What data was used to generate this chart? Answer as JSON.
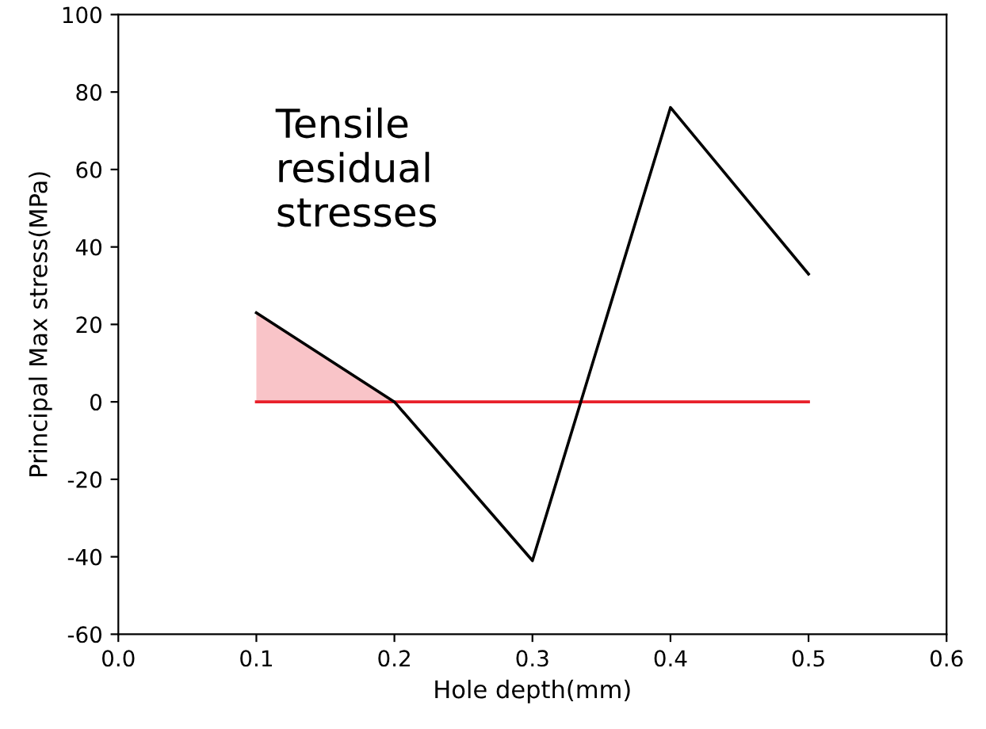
{
  "chart_data": {
    "type": "line",
    "xlabel": "Hole depth(mm)",
    "ylabel": "Principal Max stress(MPa)",
    "series": [
      {
        "type": "area",
        "x": [
          0.1,
          0.2
        ],
        "values": [
          23,
          0
        ],
        "color": "#f9c4c8"
      },
      {
        "type": "line",
        "x": [
          0.1,
          0.5
        ],
        "values": [
          0,
          0
        ],
        "color": "#e8202a"
      },
      {
        "x": [
          0.1,
          0.2,
          0.3,
          0.4,
          0.5
        ],
        "values": [
          23,
          0,
          -41,
          76,
          33
        ],
        "color": "#000000"
      }
    ],
    "annotations": [
      "Tensile\nresidual\nstresses"
    ],
    "xlim": [
      0,
      0.6
    ],
    "xticks": [
      {
        "value": 0,
        "label": "0.0"
      },
      {
        "value": 0.1,
        "label": "0.1"
      },
      {
        "value": 0.2,
        "label": "0.2"
      },
      {
        "value": 0.3,
        "label": "0.3"
      },
      {
        "value": 0.4,
        "label": "0.4"
      },
      {
        "value": 0.5,
        "label": "0.5"
      },
      {
        "value": 0.6,
        "label": "0.6"
      }
    ],
    "ylim": [
      -60,
      100
    ],
    "yticks": [
      -60,
      -40,
      -20,
      0,
      20,
      40,
      60,
      80,
      100
    ],
    "grid": false
  }
}
